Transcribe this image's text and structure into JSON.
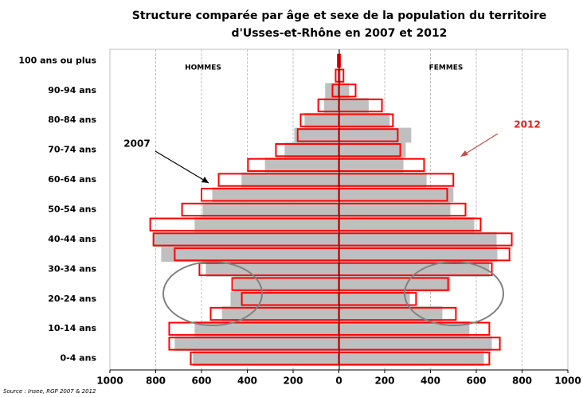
{
  "chart_data": {
    "type": "pyramid",
    "title": [
      "Structure comparée par âge et sexe de la population du territoire",
      "d'Usses-et-Rhône en 2007  et 2012"
    ],
    "categories": [
      "0-4 ans",
      null,
      "10-14 ans",
      null,
      "20-24 ans",
      null,
      "30-34 ans",
      null,
      "40-44 ans",
      null,
      "50-54 ans",
      null,
      "60-64 ans",
      null,
      "70-74 ans",
      null,
      "80-84 ans",
      null,
      "90-94 ans",
      null,
      "100 ans ou plus"
    ],
    "groups": [
      "HOMMES",
      "FEMMES"
    ],
    "series": [
      {
        "name": "2007",
        "color": "#bfbfbf",
        "hommes": [
          637,
          717,
          630,
          511,
          473,
          459,
          581,
          776,
          810,
          630,
          595,
          553,
          425,
          323,
          237,
          195,
          150,
          65,
          60,
          5,
          2
        ],
        "femmes": [
          633,
          668,
          570,
          452,
          310,
          487,
          657,
          692,
          689,
          591,
          487,
          500,
          383,
          282,
          292,
          316,
          222,
          130,
          45,
          10,
          2
        ]
      },
      {
        "name": "2012",
        "color": "#ff0000",
        "hommes": [
          647,
          741,
          741,
          560,
          424,
          466,
          609,
          717,
          810,
          824,
          685,
          600,
          525,
          397,
          275,
          180,
          167,
          90,
          28,
          14,
          5
        ],
        "femmes": [
          657,
          703,
          657,
          511,
          337,
          477,
          668,
          745,
          755,
          619,
          553,
          473,
          500,
          372,
          268,
          257,
          236,
          188,
          73,
          20,
          5
        ]
      }
    ],
    "xlim": [
      -1000,
      1000
    ],
    "xticks": [
      {
        "value": -1000,
        "label": "1000"
      },
      {
        "value": -800,
        "label": "800"
      },
      {
        "value": -600,
        "label": "600"
      },
      {
        "value": -400,
        "label": "400"
      },
      {
        "value": -200,
        "label": "200"
      },
      0,
      200,
      400,
      600,
      800,
      1000
    ],
    "grid": true,
    "source": "Source : Insee, RGP 2007 & 2012"
  }
}
